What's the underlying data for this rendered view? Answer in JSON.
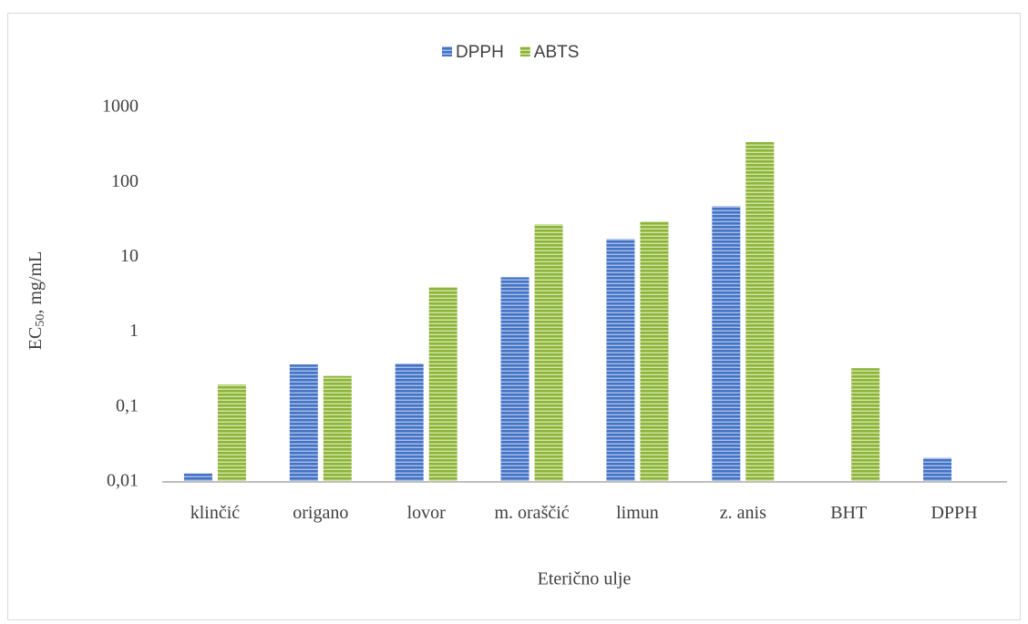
{
  "chart_data": {
    "type": "bar",
    "x_label": "Eterično ulje",
    "y_label": [
      "EC",
      "50",
      ", mg/mL"
    ],
    "categories": [
      "klinčić",
      "origano",
      "lovor",
      "m. oraščić",
      "limun",
      "z. anis",
      "BHT",
      "DPPH"
    ],
    "series": [
      {
        "name": "DPPH",
        "color": "#4472c4",
        "values": [
          0.013,
          0.37,
          0.38,
          5.4,
          17.5,
          48,
          null,
          0.021
        ]
      },
      {
        "name": "ABTS",
        "color": "#8db33a",
        "values": [
          0.2,
          0.26,
          4.0,
          27.5,
          30,
          345,
          0.33,
          null
        ]
      }
    ],
    "ylim": [
      0.01,
      1000
    ],
    "yticks": [
      {
        "value": 0.01,
        "label": "0,01"
      },
      {
        "value": 0.1,
        "label": "0,1"
      },
      1,
      10,
      100,
      1000
    ],
    "log_scale": true,
    "legend": "top"
  }
}
